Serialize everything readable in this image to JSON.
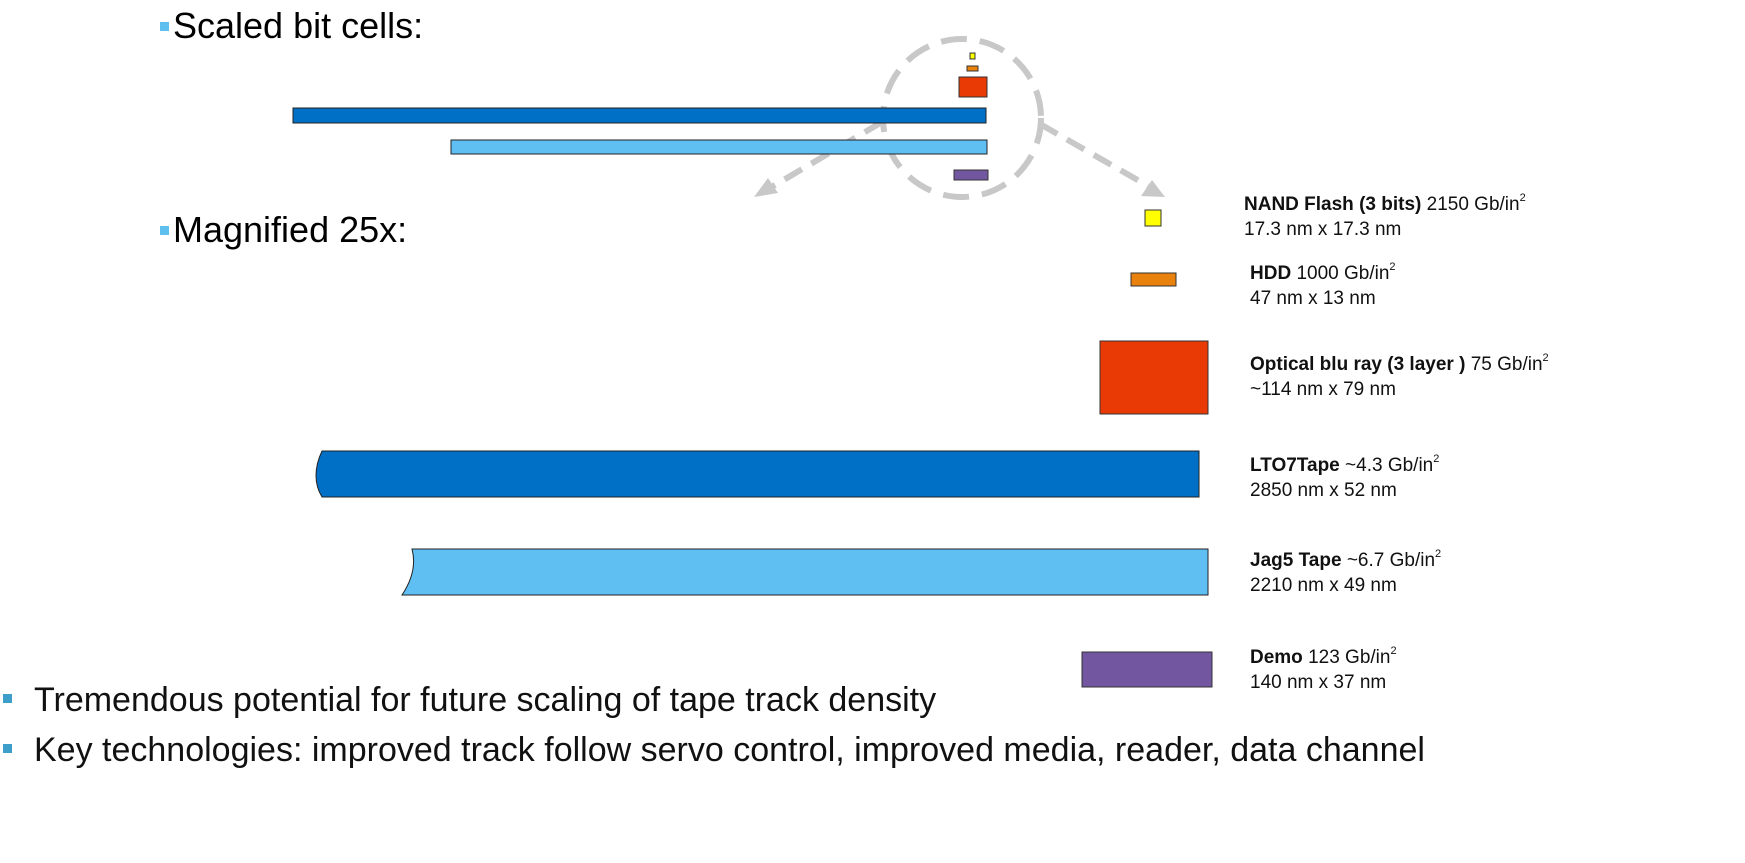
{
  "headings": {
    "scaled": "Scaled bit cells:",
    "magnified": "Magnified 25x:"
  },
  "items": [
    {
      "name": "NAND Flash (3 bits)",
      "density": "2150 Gb/in",
      "sup": "2",
      "dims": "17.3 nm x 17.3 nm",
      "color": "#ffff00"
    },
    {
      "name": "HDD",
      "density": "1000 Gb/in",
      "sup": "2",
      "dims": "47 nm x 13 nm",
      "color": "#e9820c"
    },
    {
      "name": "Optical blu ray (3 layer )",
      "density": "75 Gb/in",
      "sup": "2",
      "dims": "~114 nm x 79 nm",
      "color": "#e93a05"
    },
    {
      "name": "LTO7Tape",
      "density": "~4.3 Gb/in",
      "sup": "2",
      "dims": "2850 nm x 52 nm",
      "color": "#0070c7"
    },
    {
      "name": "Jag5 Tape",
      "density": "~6.7 Gb/in",
      "sup": "2",
      "dims": "2210 nm x 49 nm",
      "color": "#5fbff2"
    },
    {
      "name": "Demo",
      "density": "123 Gb/in",
      "sup": "2",
      "dims": "140 nm x 37 nm",
      "color": "#7257a0"
    }
  ],
  "bullets": [
    "Tremendous potential for future scaling of tape track density",
    "Key technologies: improved track follow servo control, improved media, reader, data channel"
  ],
  "colors": {
    "callout": "#c8c8c8",
    "heading_square": "#5fc0ef",
    "bullet_square": "#3c9ec9"
  }
}
